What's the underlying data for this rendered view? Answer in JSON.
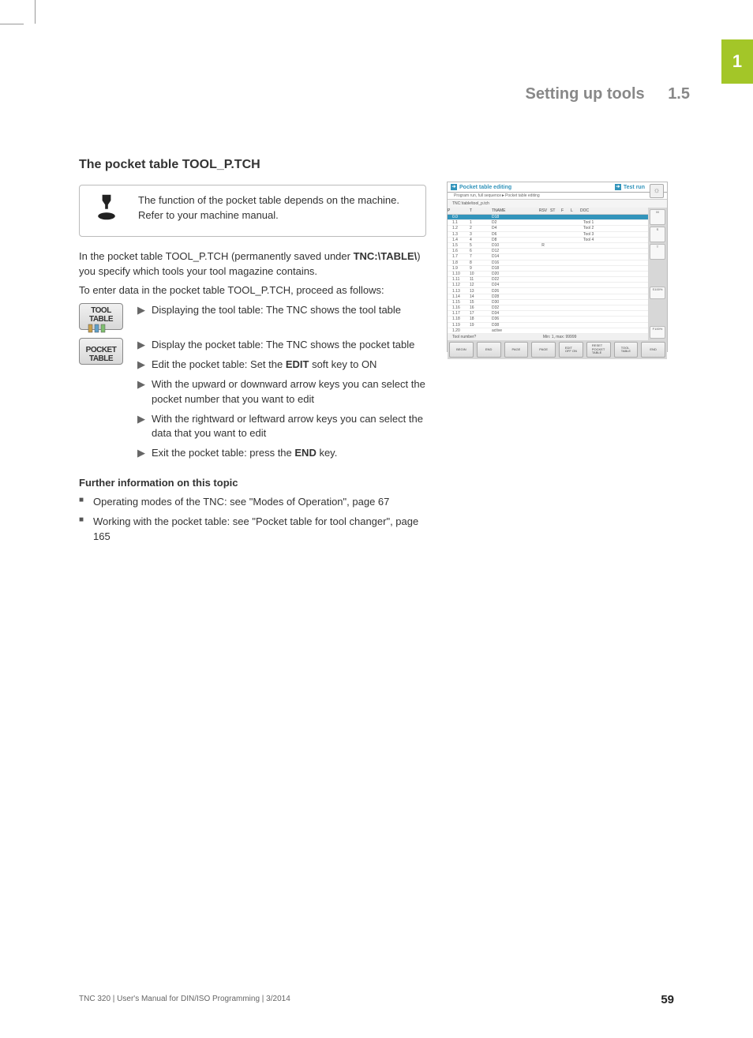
{
  "page": {
    "chapter_tab": "1",
    "running_head": "Setting up tools",
    "section_number": "1.5",
    "footer_left": "TNC 320 | User's Manual for DIN/ISO Programming | 3/2014",
    "page_number": "59"
  },
  "heading": "The pocket table TOOL_P.TCH",
  "note": "The function of the pocket table depends on the machine. Refer to your machine manual.",
  "intro1a": "In the pocket table TOOL_P.TCH (permanently saved under ",
  "intro1b": "TNC:\\TABLE\\",
  "intro1c": ") you specify which tools your tool magazine contains.",
  "intro2": "To enter data in the pocket table TOOL_P.TCH, proceed as follows:",
  "softkeys": {
    "tool_table": "TOOL\nTABLE",
    "pocket_table": "POCKET\nTABLE"
  },
  "steps": {
    "s1": "Displaying the tool table: The TNC shows the tool table",
    "s2": "Display the pocket table: The TNC shows the pocket table",
    "s3a": "Edit the pocket table: Set the ",
    "s3b": "EDIT",
    "s3c": " soft key to ON",
    "s4": "With the upward or downward arrow keys you can select the pocket number that you want to edit",
    "s5": "With the rightward or leftward arrow keys you can select the data that you want to edit",
    "s6a": "Exit the pocket table: press the ",
    "s6b": "END",
    "s6c": " key."
  },
  "further_heading": "Further information on this topic",
  "further": {
    "b1": "Operating modes of the TNC: see \"Modes of Operation\", page 67",
    "b2": "Working with the pocket table: see \"Pocket table for tool changer\", page 165"
  },
  "screenshot": {
    "title_left": "Pocket table editing",
    "subtitle": "Program run, full sequence►Pocket table editing",
    "title_right": "Test run",
    "path": "TNC:\\table\\tool_p.tch",
    "headers": {
      "p": "P",
      "t": "T",
      "name": "TNAME",
      "rsv": "RSV",
      "st": "ST",
      "f": "F",
      "l": "L",
      "doc": "DOC"
    },
    "rows": [
      {
        "p": "0.0",
        "t": "",
        "name": "D18",
        "doc": ""
      },
      {
        "p": "1.1",
        "t": "1",
        "name": "D2",
        "doc": "Tool 1"
      },
      {
        "p": "1.2",
        "t": "2",
        "name": "D4",
        "doc": "Tool 2"
      },
      {
        "p": "1.3",
        "t": "3",
        "name": "D6",
        "doc": "Tool 3"
      },
      {
        "p": "1.4",
        "t": "4",
        "name": "D8",
        "doc": "Tool 4"
      },
      {
        "p": "1.5",
        "t": "5",
        "name": "D10",
        "rsv": "R",
        "doc": ""
      },
      {
        "p": "1.6",
        "t": "6",
        "name": "D12",
        "doc": ""
      },
      {
        "p": "1.7",
        "t": "7",
        "name": "D14",
        "doc": ""
      },
      {
        "p": "1.8",
        "t": "8",
        "name": "D16",
        "doc": ""
      },
      {
        "p": "1.9",
        "t": "9",
        "name": "D18",
        "doc": ""
      },
      {
        "p": "1.10",
        "t": "10",
        "name": "D20",
        "doc": ""
      },
      {
        "p": "1.11",
        "t": "11",
        "name": "D22",
        "doc": ""
      },
      {
        "p": "1.12",
        "t": "12",
        "name": "D24",
        "doc": ""
      },
      {
        "p": "1.13",
        "t": "13",
        "name": "D26",
        "doc": ""
      },
      {
        "p": "1.14",
        "t": "14",
        "name": "D28",
        "doc": ""
      },
      {
        "p": "1.15",
        "t": "15",
        "name": "D30",
        "doc": ""
      },
      {
        "p": "1.16",
        "t": "16",
        "name": "D32",
        "doc": ""
      },
      {
        "p": "1.17",
        "t": "17",
        "name": "D34",
        "doc": ""
      },
      {
        "p": "1.18",
        "t": "18",
        "name": "D36",
        "doc": ""
      },
      {
        "p": "1.19",
        "t": "19",
        "name": "D38",
        "doc": ""
      },
      {
        "p": "1.20",
        "t": "",
        "name": "active",
        "doc": ""
      }
    ],
    "status_left": "Tool number?",
    "status_mid": "Min: 1, max: 99999",
    "softrow": [
      "BEGIN",
      "END",
      "PAGE",
      "PAGE",
      "EDIT\nOFF ON",
      "RESET\nPOCKET\nTABLE",
      "TOOL\nTABLE",
      "END"
    ],
    "side_labels": [
      "S100%",
      "F100%"
    ]
  }
}
